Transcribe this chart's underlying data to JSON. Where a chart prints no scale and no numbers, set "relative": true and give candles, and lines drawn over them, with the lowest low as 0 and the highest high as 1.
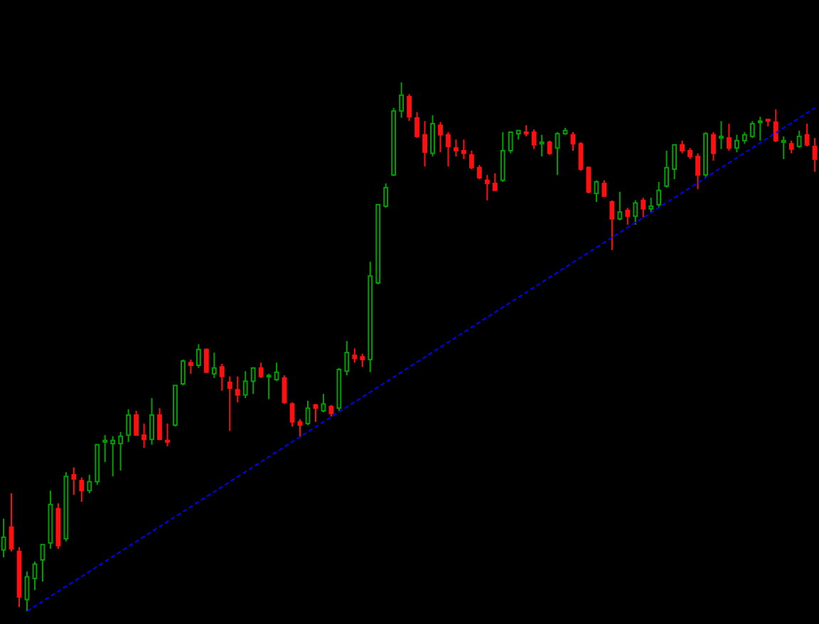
{
  "chart_data": {
    "type": "candlestick",
    "relative": true,
    "categories": [
      null,
      null,
      null,
      null,
      null,
      null,
      null,
      null,
      null,
      null,
      null,
      null,
      null,
      null,
      null,
      null,
      null,
      null,
      null,
      null,
      null,
      null,
      null,
      null,
      null,
      null,
      null,
      null,
      null,
      null,
      null,
      null,
      null,
      null,
      null,
      null,
      null,
      null,
      null,
      null,
      null,
      null,
      null,
      null,
      null,
      null,
      null,
      null,
      null,
      null,
      null,
      null,
      null,
      null,
      null,
      null,
      null,
      null,
      null,
      null,
      null,
      null,
      null,
      null,
      null,
      null,
      null,
      null,
      null,
      null,
      null,
      null,
      null,
      null,
      null,
      null,
      null,
      null,
      null,
      null,
      null,
      null,
      null,
      null,
      null,
      null,
      null,
      null,
      null,
      null,
      null,
      null,
      null,
      null,
      null,
      null,
      null,
      null,
      null,
      null,
      null,
      null,
      null,
      null,
      null
    ],
    "ohlc": [
      [
        0.116,
        0.175,
        0.102,
        0.14
      ],
      [
        0.159,
        0.223,
        0.113,
        0.118
      ],
      [
        0.113,
        0.121,
        0.008,
        0.027
      ],
      [
        0.022,
        0.075,
        0,
        0.065
      ],
      [
        0.062,
        0.094,
        0.04,
        0.089
      ],
      [
        0.097,
        0.126,
        0.056,
        0.126
      ],
      [
        0.129,
        0.228,
        0.118,
        0.202
      ],
      [
        0.194,
        0.204,
        0.118,
        0.124
      ],
      [
        0.137,
        0.263,
        0.132,
        0.255
      ],
      [
        0.258,
        0.272,
        0.22,
        0.25
      ],
      [
        0.247,
        0.253,
        0.207,
        0.228
      ],
      [
        0.228,
        0.258,
        0.223,
        0.245
      ],
      [
        0.245,
        0.315,
        0.239,
        0.315
      ],
      [
        0.32,
        0.333,
        0.282,
        0.323
      ],
      [
        0.317,
        0.331,
        0.255,
        0.323
      ],
      [
        0.317,
        0.339,
        0.266,
        0.331
      ],
      [
        0.333,
        0.382,
        0.32,
        0.371
      ],
      [
        0.371,
        0.379,
        0.333,
        0.333
      ],
      [
        0.333,
        0.355,
        0.309,
        0.325
      ],
      [
        0.325,
        0.403,
        0.315,
        0.371
      ],
      [
        0.371,
        0.384,
        0.325,
        0.325
      ],
      [
        0.323,
        0.355,
        0.312,
        0.32
      ],
      [
        0.352,
        0.427,
        0.349,
        0.427
      ],
      [
        0.43,
        0.476,
        0.427,
        0.473
      ],
      [
        0.47,
        0.476,
        0.449,
        0.465
      ],
      [
        0.465,
        0.505,
        0.46,
        0.495
      ],
      [
        0.495,
        0.497,
        0.452,
        0.452
      ],
      [
        0.449,
        0.489,
        0.441,
        0.46
      ],
      [
        0.462,
        0.468,
        0.417,
        0.444
      ],
      [
        0.433,
        0.444,
        0.341,
        0.422
      ],
      [
        0.419,
        0.444,
        0.395,
        0.409
      ],
      [
        0.409,
        0.454,
        0.403,
        0.435
      ],
      [
        0.435,
        0.46,
        0.411,
        0.46
      ],
      [
        0.46,
        0.47,
        0.441,
        0.444
      ],
      [
        0.444,
        0.449,
        0.401,
        0.446
      ],
      [
        0.438,
        0.47,
        0.435,
        0.452
      ],
      [
        0.441,
        0.446,
        0.392,
        0.395
      ],
      [
        0.392,
        0.395,
        0.349,
        0.358
      ],
      [
        0.358,
        0.363,
        0.328,
        0.352
      ],
      [
        0.355,
        0.398,
        0.352,
        0.384
      ],
      [
        0.39,
        0.392,
        0.358,
        0.384
      ],
      [
        0.379,
        0.411,
        0.376,
        0.392
      ],
      [
        0.387,
        0.39,
        0.368,
        0.374
      ],
      [
        0.384,
        0.46,
        0.379,
        0.457
      ],
      [
        0.454,
        0.511,
        0.446,
        0.489
      ],
      [
        0.484,
        0.497,
        0.47,
        0.478
      ],
      [
        0.481,
        0.487,
        0.462,
        0.476
      ],
      [
        0.476,
        0.661,
        0.452,
        0.634
      ],
      [
        0.621,
        0.769,
        0.618,
        0.769
      ],
      [
        0.766,
        0.809,
        0.763,
        0.801
      ],
      [
        0.825,
        0.952,
        0.823,
        0.946
      ],
      [
        0.946,
        1,
        0.933,
        0.976
      ],
      [
        0.973,
        0.978,
        0.927,
        0.935
      ],
      [
        0.933,
        0.944,
        0.895,
        0.898
      ],
      [
        0.901,
        0.927,
        0.841,
        0.868
      ],
      [
        0.866,
        0.938,
        0.86,
        0.922
      ],
      [
        0.919,
        0.925,
        0.868,
        0.901
      ],
      [
        0.901,
        0.906,
        0.841,
        0.879
      ],
      [
        0.876,
        0.892,
        0.86,
        0.871
      ],
      [
        0.871,
        0.892,
        0.855,
        0.866
      ],
      [
        0.863,
        0.871,
        0.836,
        0.839
      ],
      [
        0.839,
        0.844,
        0.817,
        0.82
      ],
      [
        0.815,
        0.825,
        0.777,
        0.809
      ],
      [
        0.809,
        0.828,
        0.796,
        0.796
      ],
      [
        0.815,
        0.906,
        0.812,
        0.871
      ],
      [
        0.871,
        0.906,
        0.866,
        0.906
      ],
      [
        0.903,
        0.909,
        0.892,
        0.909
      ],
      [
        0.906,
        0.919,
        0.898,
        0.903
      ],
      [
        0.906,
        0.911,
        0.874,
        0.882
      ],
      [
        0.884,
        0.901,
        0.86,
        0.887
      ],
      [
        0.887,
        0.89,
        0.863,
        0.866
      ],
      [
        0.876,
        0.906,
        0.825,
        0.903
      ],
      [
        0.903,
        0.914,
        0.901,
        0.909
      ],
      [
        0.901,
        0.906,
        0.871,
        0.884
      ],
      [
        0.884,
        0.887,
        0.833,
        0.836
      ],
      [
        0.839,
        0.841,
        0.79,
        0.793
      ],
      [
        0.79,
        0.815,
        0.774,
        0.812
      ],
      [
        0.809,
        0.815,
        0.785,
        0.785
      ],
      [
        0.774,
        0.777,
        0.683,
        0.742
      ],
      [
        0.742,
        0.793,
        0.739,
        0.755
      ],
      [
        0.758,
        0.763,
        0.731,
        0.747
      ],
      [
        0.747,
        0.777,
        0.731,
        0.772
      ],
      [
        0.777,
        0.782,
        0.745,
        0.761
      ],
      [
        0.761,
        0.782,
        0.753,
        0.766
      ],
      [
        0.769,
        0.812,
        0.763,
        0.796
      ],
      [
        0.804,
        0.871,
        0.801,
        0.839
      ],
      [
        0.836,
        0.882,
        0.817,
        0.882
      ],
      [
        0.882,
        0.89,
        0.866,
        0.871
      ],
      [
        0.871,
        0.876,
        0.855,
        0.86
      ],
      [
        0.86,
        0.866,
        0.798,
        0.825
      ],
      [
        0.825,
        0.906,
        0.82,
        0.903
      ],
      [
        0.901,
        0.906,
        0.852,
        0.866
      ],
      [
        0.895,
        0.927,
        0.874,
        0.898
      ],
      [
        0.895,
        0.922,
        0.871,
        0.876
      ],
      [
        0.876,
        0.901,
        0.868,
        0.89
      ],
      [
        0.89,
        0.906,
        0.884,
        0.901
      ],
      [
        0.898,
        0.927,
        0.895,
        0.922
      ],
      [
        0.925,
        0.935,
        0.89,
        0.927
      ],
      [
        0.93,
        0.93,
        0.917,
        0.927
      ],
      [
        0.925,
        0.949,
        0.887,
        0.89
      ],
      [
        0.887,
        0.898,
        0.855,
        0.89
      ],
      [
        0.884,
        0.89,
        0.866,
        0.874
      ],
      [
        0.879,
        0.909,
        0.876,
        0.898
      ],
      [
        0.901,
        0.922,
        0.879,
        0.882
      ],
      [
        0.879,
        0.895,
        0.831,
        0.855
      ]
    ],
    "colors": [
      "#00a000",
      "#ff1010",
      "#ff1010",
      "#00a000",
      "#00a000",
      "#00a000",
      "#00a000",
      "#ff1010",
      "#00a000",
      "#ff1010",
      "#ff1010",
      "#00a000",
      "#00a000",
      "#00a000",
      "#00a000",
      "#00a000",
      "#00a000",
      "#ff1010",
      "#ff1010",
      "#00a000",
      "#ff1010",
      "#ff1010",
      "#00a000",
      "#00a000",
      "#ff1010",
      "#00a000",
      "#ff1010",
      "#00a000",
      "#ff1010",
      "#ff1010",
      "#ff1010",
      "#00a000",
      "#00a000",
      "#ff1010",
      "#00a000",
      "#00a000",
      "#ff1010",
      "#ff1010",
      "#ff1010",
      "#00a000",
      "#ff1010",
      "#00a000",
      "#ff1010",
      "#00a000",
      "#00a000",
      "#ff1010",
      "#ff1010",
      "#00a000",
      "#00a000",
      "#00a000",
      "#00a000",
      "#00a000",
      "#ff1010",
      "#ff1010",
      "#ff1010",
      "#00a000",
      "#ff1010",
      "#ff1010",
      "#ff1010",
      "#ff1010",
      "#ff1010",
      "#ff1010",
      "#ff1010",
      "#ff1010",
      "#00a000",
      "#00a000",
      "#00a000",
      "#ff1010",
      "#ff1010",
      "#00a000",
      "#ff1010",
      "#00a000",
      "#00a000",
      "#ff1010",
      "#ff1010",
      "#ff1010",
      "#00a000",
      "#ff1010",
      "#ff1010",
      "#00a000",
      "#ff1010",
      "#00a000",
      "#ff1010",
      "#00a000",
      "#00a000",
      "#00a000",
      "#00a000",
      "#ff1010",
      "#ff1010",
      "#ff1010",
      "#00a000",
      "#ff1010",
      "#00a000",
      "#ff1010",
      "#00a000",
      "#00a000",
      "#00a000",
      "#00a000",
      "#ff1010",
      "#ff1010",
      "#00a000",
      "#ff1010",
      "#00a000",
      "#ff1010",
      "#ff1010"
    ],
    "series": [
      {
        "type": "line",
        "color": "#0000ff",
        "line_style": "dashed",
        "values": [
          null,
          null,
          null,
          0,
          null,
          null,
          null,
          null,
          null,
          null,
          null,
          null,
          null,
          null,
          null,
          null,
          null,
          null,
          null,
          null,
          null,
          null,
          null,
          null,
          null,
          null,
          null,
          null,
          null,
          null,
          null,
          null,
          null,
          null,
          null,
          null,
          null,
          null,
          null,
          null,
          null,
          null,
          null,
          null,
          null,
          null,
          null,
          null,
          null,
          null,
          null,
          null,
          null,
          null,
          null,
          null,
          null,
          null,
          null,
          null,
          null,
          null,
          null,
          null,
          null,
          null,
          null,
          null,
          null,
          null,
          null,
          null,
          null,
          null,
          null,
          null,
          null,
          null,
          null,
          null,
          null,
          null,
          null,
          null,
          null,
          null,
          null,
          null,
          null,
          null,
          null,
          null,
          null,
          null,
          null,
          null,
          null,
          null,
          null,
          null,
          null,
          null,
          null,
          null,
          0.952
        ]
      }
    ]
  }
}
